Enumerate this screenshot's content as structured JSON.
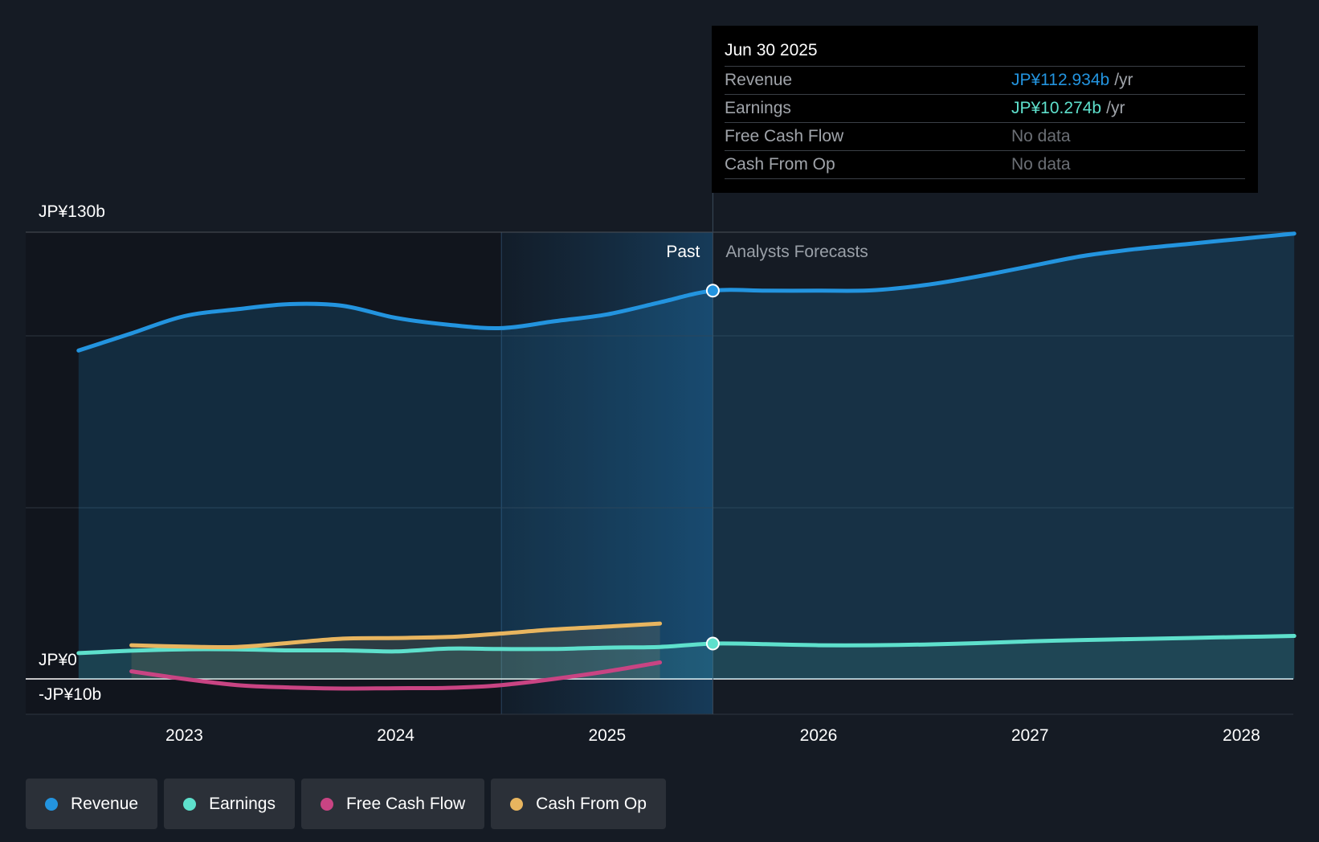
{
  "colors": {
    "background": "#151b24",
    "revenue": "#2394df",
    "earnings": "#5ee0cc",
    "fcf": "#c94483",
    "cfo": "#e8b55f"
  },
  "tooltip": {
    "date": "Jun 30 2025",
    "rows": [
      {
        "label": "Revenue",
        "value": "JP¥112.934b",
        "unit": "/yr"
      },
      {
        "label": "Earnings",
        "value": "JP¥10.274b",
        "unit": "/yr"
      },
      {
        "label": "Free Cash Flow",
        "value": "No data"
      },
      {
        "label": "Cash From Op",
        "value": "No data"
      }
    ]
  },
  "chart_data": {
    "type": "line",
    "y_labels": {
      "top": "JP¥130b",
      "zero": "JP¥0",
      "bottom": "-JP¥10b"
    },
    "ylim": [
      -10,
      130
    ],
    "x_ticks": [
      "2023",
      "2024",
      "2025",
      "2026",
      "2027",
      "2028"
    ],
    "xlim": [
      2022.25,
      2028.25
    ],
    "past_label": "Past",
    "forecast_label": "Analysts Forecasts",
    "divider_x": 2025.5,
    "grid": true,
    "legend_position": "bottom-left",
    "series": [
      {
        "name": "Revenue",
        "color": "#2394df",
        "x": [
          2022.5,
          2022.75,
          2023.0,
          2023.25,
          2023.5,
          2023.75,
          2024.0,
          2024.25,
          2024.5,
          2024.75,
          2025.0,
          2025.25,
          2025.5,
          2025.75,
          2026.0,
          2026.25,
          2026.5,
          2026.75,
          2027.0,
          2027.25,
          2027.5,
          2027.75,
          2028.0,
          2028.25
        ],
        "y": [
          95.5,
          100.5,
          105.5,
          107.5,
          109,
          108.5,
          105,
          103,
          102,
          104,
          106,
          109.5,
          112.9,
          112.9,
          112.9,
          113,
          114.5,
          117,
          120,
          123,
          125,
          126.5,
          128,
          129.5
        ]
      },
      {
        "name": "Earnings",
        "color": "#5ee0cc",
        "x": [
          2022.5,
          2022.75,
          2023.0,
          2023.25,
          2023.5,
          2023.75,
          2024.0,
          2024.25,
          2024.5,
          2024.75,
          2025.0,
          2025.25,
          2025.5,
          2025.75,
          2026.0,
          2026.25,
          2026.5,
          2026.75,
          2027.0,
          2027.25,
          2027.5,
          2027.75,
          2028.0,
          2028.25
        ],
        "y": [
          7.5,
          8.2,
          8.6,
          8.6,
          8.3,
          8.3,
          8.0,
          8.8,
          8.7,
          8.7,
          9.1,
          9.3,
          10.27,
          10.1,
          9.8,
          9.8,
          10.0,
          10.4,
          10.9,
          11.3,
          11.6,
          11.9,
          12.2,
          12.5
        ]
      },
      {
        "name": "Free Cash Flow",
        "color": "#c94483",
        "x": [
          2022.75,
          2023.0,
          2023.25,
          2023.5,
          2023.75,
          2024.0,
          2024.25,
          2024.5,
          2024.75,
          2025.0,
          2025.25
        ],
        "y": [
          2.2,
          0,
          -1.8,
          -2.5,
          -2.8,
          -2.7,
          -2.6,
          -1.8,
          0,
          2.2,
          4.8
        ]
      },
      {
        "name": "Cash From Op",
        "color": "#e8b55f",
        "x": [
          2022.75,
          2023.0,
          2023.25,
          2023.5,
          2023.75,
          2024.0,
          2024.25,
          2024.5,
          2024.75,
          2025.0,
          2025.25
        ],
        "y": [
          9.8,
          9.4,
          9.3,
          10.5,
          11.7,
          11.9,
          12.2,
          13.2,
          14.4,
          15.2,
          16.1
        ]
      }
    ]
  },
  "legend": [
    {
      "label": "Revenue",
      "color": "#2394df"
    },
    {
      "label": "Earnings",
      "color": "#5ee0cc"
    },
    {
      "label": "Free Cash Flow",
      "color": "#c94483"
    },
    {
      "label": "Cash From Op",
      "color": "#e8b55f"
    }
  ]
}
